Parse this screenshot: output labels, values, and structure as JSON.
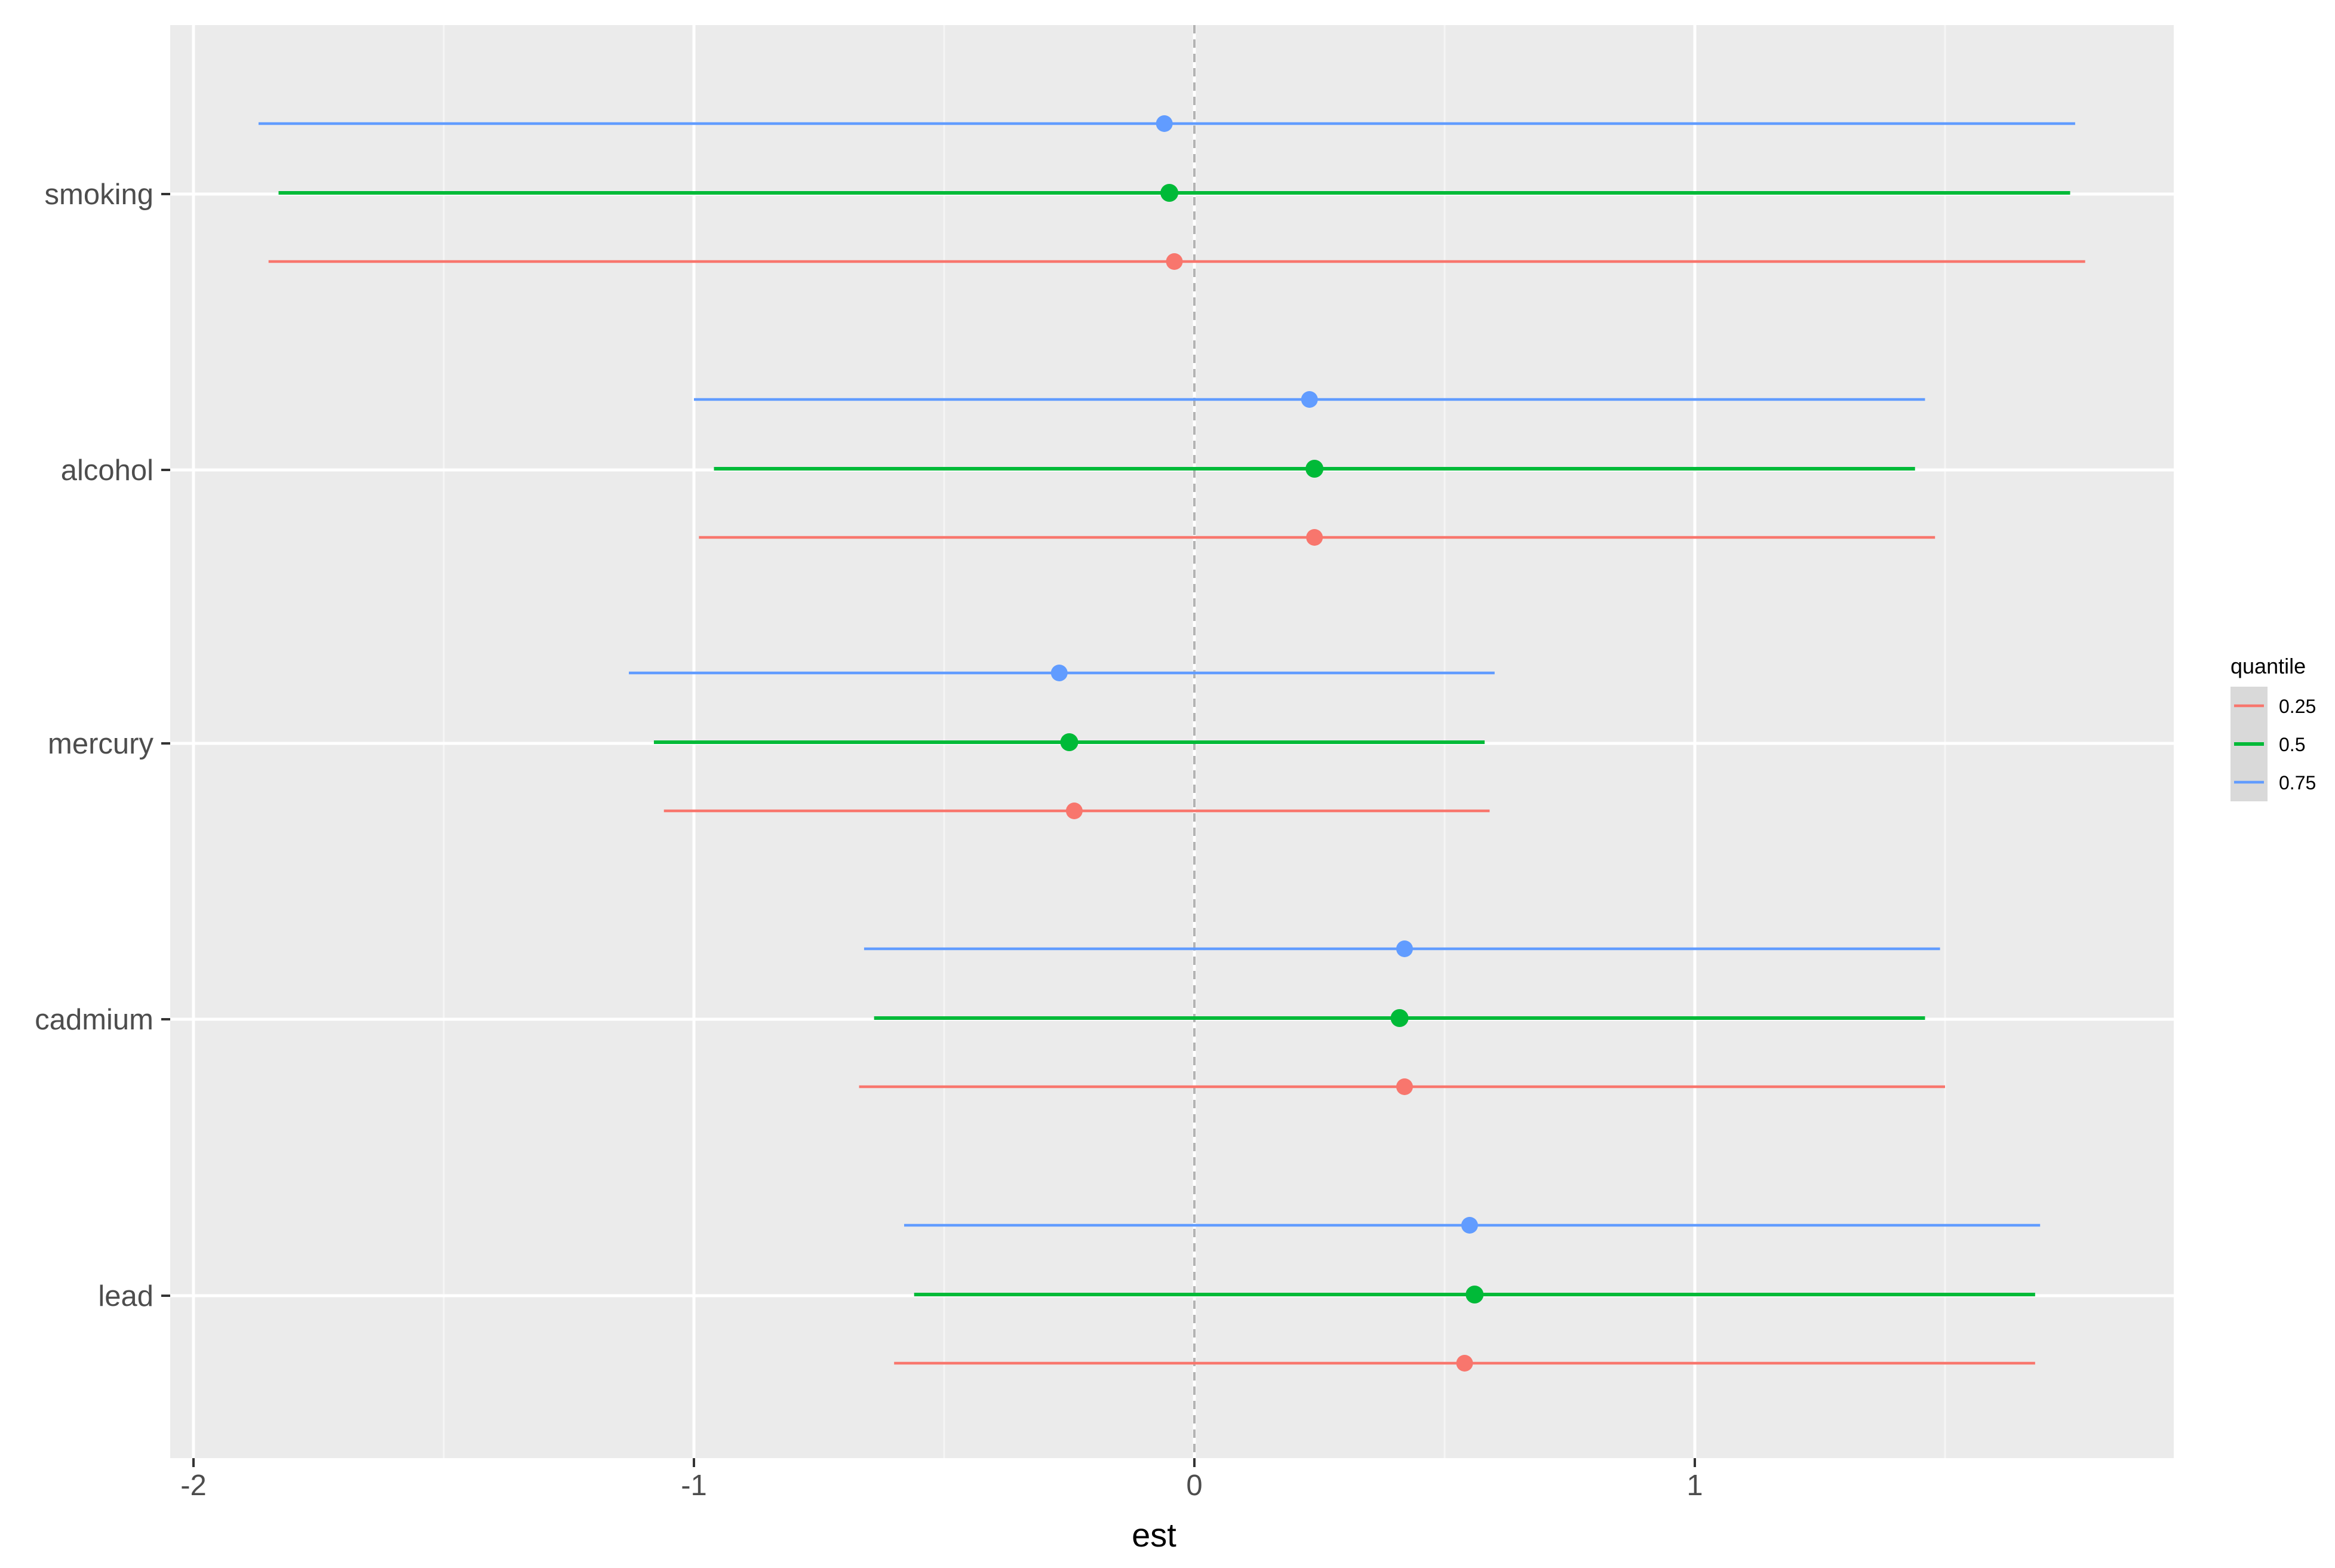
{
  "chart_data": {
    "type": "errorbar",
    "xlabel": "est",
    "ylabel": "",
    "xlim": [
      -2.0,
      1.92
    ],
    "x_ticks": [
      -2,
      -1,
      0,
      1
    ],
    "x_tick_labels": [
      "-2",
      "-1",
      "0",
      "1"
    ],
    "reference_line": 0,
    "grid": true,
    "categories": [
      "smoking",
      "alcohol",
      "mercury",
      "cadmium",
      "lead"
    ],
    "legend": {
      "title": "quantile",
      "position": "right",
      "entries": [
        "0.25",
        "0.5",
        "0.75"
      ]
    },
    "series": [
      {
        "name": "0.25",
        "color": "#F8766D",
        "points": [
          {
            "category": "smoking",
            "est": -0.04,
            "low": -1.85,
            "high": 1.78
          },
          {
            "category": "alcohol",
            "est": 0.24,
            "low": -0.99,
            "high": 1.48
          },
          {
            "category": "mercury",
            "est": -0.24,
            "low": -1.06,
            "high": 0.59
          },
          {
            "category": "cadmium",
            "est": 0.42,
            "low": -0.67,
            "high": 1.5
          },
          {
            "category": "lead",
            "est": 0.54,
            "low": -0.6,
            "high": 1.68
          }
        ]
      },
      {
        "name": "0.5",
        "color": "#00BA38",
        "points": [
          {
            "category": "smoking",
            "est": -0.05,
            "low": -1.83,
            "high": 1.75
          },
          {
            "category": "alcohol",
            "est": 0.24,
            "low": -0.96,
            "high": 1.44
          },
          {
            "category": "mercury",
            "est": -0.25,
            "low": -1.08,
            "high": 0.58
          },
          {
            "category": "cadmium",
            "est": 0.41,
            "low": -0.64,
            "high": 1.46
          },
          {
            "category": "lead",
            "est": 0.56,
            "low": -0.56,
            "high": 1.68
          }
        ]
      },
      {
        "name": "0.75",
        "color": "#619CFF",
        "points": [
          {
            "category": "smoking",
            "est": -0.06,
            "low": -1.87,
            "high": 1.76
          },
          {
            "category": "alcohol",
            "est": 0.23,
            "low": -1.0,
            "high": 1.46
          },
          {
            "category": "mercury",
            "est": -0.27,
            "low": -1.13,
            "high": 0.6
          },
          {
            "category": "cadmium",
            "est": 0.42,
            "low": -0.66,
            "high": 1.49
          },
          {
            "category": "lead",
            "est": 0.55,
            "low": -0.58,
            "high": 1.69
          }
        ]
      }
    ]
  }
}
